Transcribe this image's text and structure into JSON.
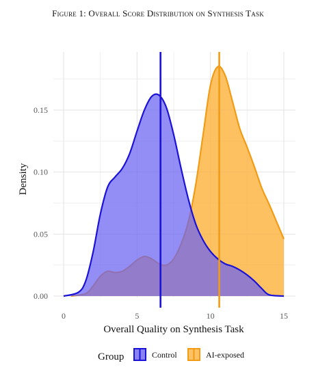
{
  "figure": {
    "title": "Figure 1: Overall Score Distribution on Synthesis Task"
  },
  "chart_data": {
    "type": "area",
    "subtype": "density",
    "xlabel": "Overall Quality on Synthesis Task",
    "ylabel": "Density",
    "xlim": [
      0,
      15
    ],
    "ylim": [
      0,
      0.185
    ],
    "x_ticks": [
      0,
      5,
      10,
      15
    ],
    "y_ticks": [
      0.0,
      0.05,
      0.1,
      0.15
    ],
    "x_tick_labels": [
      "0",
      "5",
      "10",
      "15"
    ],
    "y_tick_labels": [
      "0.00",
      "0.05",
      "0.10",
      "0.15"
    ],
    "grid": true,
    "legend_position": "bottom",
    "legend_title": "Group",
    "series": [
      {
        "name": "Control",
        "color": "#1a12d6",
        "fill": "#6a63f2",
        "x": [
          0,
          1,
          1.5,
          2,
          2.5,
          3,
          3.5,
          4,
          4.5,
          5,
          5.5,
          6,
          6.5,
          7,
          7.5,
          8,
          8.5,
          9,
          9.5,
          10,
          10.5,
          11,
          11.5,
          12,
          12.5,
          13,
          13.5,
          14,
          15
        ],
        "y": [
          0.0,
          0.003,
          0.012,
          0.035,
          0.066,
          0.088,
          0.096,
          0.103,
          0.115,
          0.133,
          0.15,
          0.161,
          0.162,
          0.152,
          0.13,
          0.103,
          0.078,
          0.058,
          0.045,
          0.036,
          0.03,
          0.026,
          0.024,
          0.021,
          0.017,
          0.012,
          0.006,
          0.001,
          0.0
        ],
        "mean": 6.6
      },
      {
        "name": "AI-exposed",
        "color": "#f29b14",
        "fill": "#fcb33f",
        "x": [
          0.5,
          1.5,
          2,
          2.5,
          3,
          3.5,
          4,
          4.5,
          5,
          5.5,
          6,
          6.5,
          7,
          7.5,
          8,
          8.5,
          9,
          9.5,
          10,
          10.5,
          11,
          11.5,
          12,
          12.5,
          13,
          13.5,
          14,
          14.5,
          15
        ],
        "y": [
          0.0,
          0.002,
          0.008,
          0.016,
          0.02,
          0.019,
          0.02,
          0.024,
          0.029,
          0.032,
          0.03,
          0.026,
          0.025,
          0.03,
          0.042,
          0.06,
          0.09,
          0.13,
          0.17,
          0.185,
          0.178,
          0.157,
          0.135,
          0.12,
          0.104,
          0.087,
          0.074,
          0.06,
          0.046
        ],
        "mean": 10.6
      }
    ]
  }
}
